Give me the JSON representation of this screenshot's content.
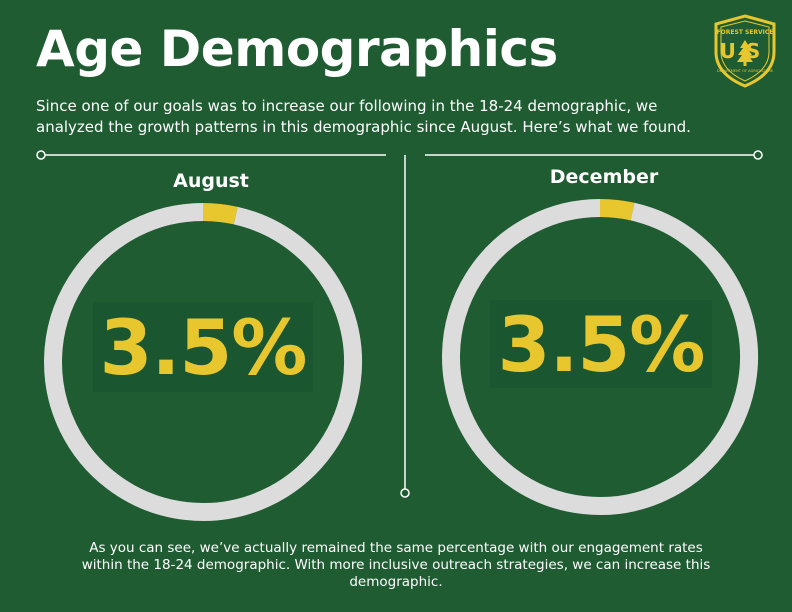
{
  "header": {
    "title": "Age Demographics",
    "intro": "Since one of our goals was to increase our following in the 18-24 demographic, we analyzed the growth patterns in this demographic since August. Here’s what we found."
  },
  "logo": {
    "icon": "forest-service-shield-icon",
    "top_text": "FOREST SERVICE",
    "letters": "US",
    "bottom_text": "DEPARTMENT OF AGRICULTURE"
  },
  "chart_data": [
    {
      "type": "pie",
      "title": "August",
      "label": "3.5%",
      "values": [
        3.5,
        96.5
      ],
      "colors": [
        "#e8c72e",
        "#dcdcdc"
      ]
    },
    {
      "type": "pie",
      "title": "December",
      "label": "3.5%",
      "values": [
        3.5,
        96.5
      ],
      "colors": [
        "#e8c72e",
        "#dcdcdc"
      ]
    }
  ],
  "footer": {
    "text": "As you can see, we’ve actually remained the same percentage with our engagement rates within the 18-24 demographic. With more inclusive outreach strategies, we can increase this demographic."
  },
  "colors": {
    "background": "#1f5c32",
    "accent": "#e8c72e",
    "ring": "#dcdcdc",
    "text": "#ffffff"
  }
}
